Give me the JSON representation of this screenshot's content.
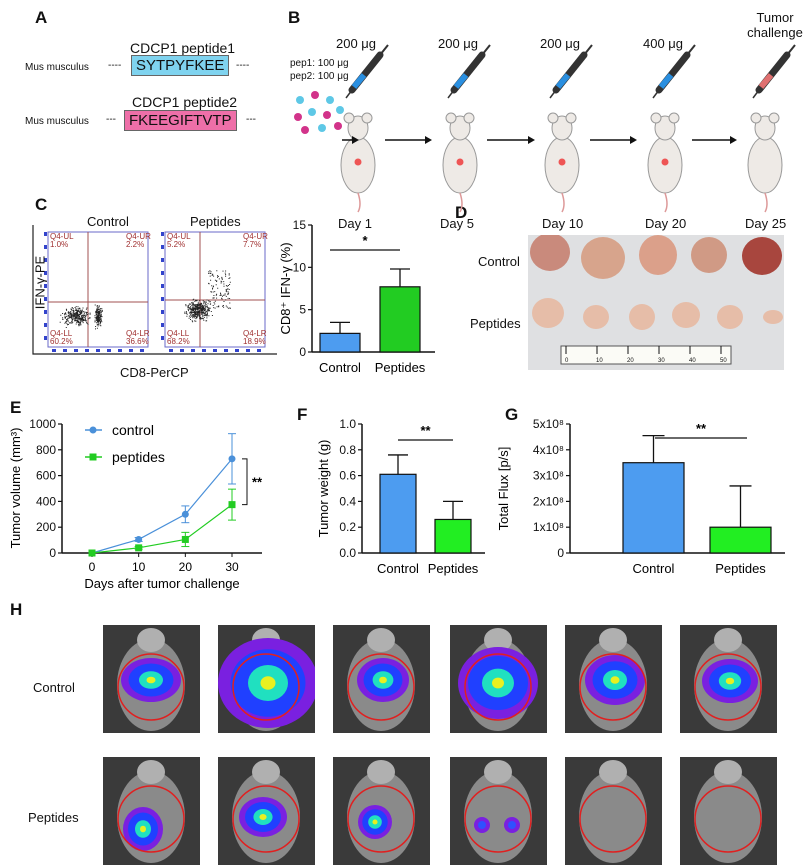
{
  "panels": {
    "A": "A",
    "B": "B",
    "C": "C",
    "D": "D",
    "E": "E",
    "F": "F",
    "G": "G",
    "H": "H"
  },
  "panelA": {
    "species": "Mus musculus",
    "dashes": "----",
    "pep1_name": "CDCP1 peptide1",
    "pep1_seq": "SYTPYFKEE",
    "pep2_name": "CDCP1 peptide2",
    "pep2_seq": "FKEEGIFTVTP",
    "dashes2": "---",
    "colors": {
      "pep1": "#7fd3ef",
      "pep2": "#ee6fa8"
    }
  },
  "panelB": {
    "pep1": "pep1: 100 μg",
    "pep2": "pep2: 100 μg",
    "doses": [
      "200 μg",
      "200 μg",
      "200 μg",
      "400 μg",
      "Tumor challenge"
    ],
    "days": [
      "Day 1",
      "Day 5",
      "Day 10",
      "Day 20",
      "Day 25"
    ]
  },
  "panelC": {
    "flow": {
      "ylabel": "IFN-γ-PE",
      "xlabel": "CD8-PerCP",
      "plots": [
        {
          "title": "Control",
          "UL": "Q4-UL",
          "UL_v": "1.0%",
          "UR": "Q4-UR",
          "UR_v": "2.2%",
          "LL": "Q4-LL",
          "LL_v": "60.2%",
          "LR": "Q4-LR",
          "LR_v": "36.6%"
        },
        {
          "title": "Peptides",
          "UL": "Q4-UL",
          "UL_v": "5.2%",
          "UR": "Q4-UR",
          "UR_v": "7.7%",
          "LL": "Q4-LL",
          "LL_v": "68.2%",
          "LR": "Q4-LR",
          "LR_v": "18.9%"
        }
      ]
    }
  },
  "panelD": {
    "rows": [
      "Control",
      "Peptides"
    ],
    "ruler_ticks": [
      "0",
      "10",
      "20",
      "30",
      "40",
      "50"
    ]
  },
  "panelH": {
    "rows": [
      "Control",
      "Peptides"
    ]
  },
  "chart_data": [
    {
      "id": "C",
      "type": "bar",
      "categories": [
        "Control",
        "Peptides"
      ],
      "values": [
        2.2,
        7.7
      ],
      "errors": [
        1.3,
        2.1
      ],
      "ylabel": "CD8⁺ IFN-γ (%)",
      "ylim": [
        0,
        15
      ],
      "yticks": [
        "0",
        "5",
        "10",
        "15"
      ],
      "significance": "*",
      "colors": [
        "#4d9cf0",
        "#22cc22"
      ]
    },
    {
      "id": "E",
      "type": "line",
      "x": [
        0,
        10,
        20,
        30
      ],
      "xticks": [
        "0",
        "10",
        "20",
        "30"
      ],
      "xlabel": "Days after tumor challenge",
      "ylabel": "Tumor volume (mm³)",
      "ylim": [
        0,
        1000
      ],
      "yticks": [
        "0",
        "200",
        "400",
        "600",
        "800",
        "1000"
      ],
      "series": [
        {
          "name": "control",
          "values": [
            0,
            105,
            300,
            730
          ],
          "errors": [
            0,
            15,
            65,
            195
          ],
          "color": "#4a90d9",
          "marker": "circle"
        },
        {
          "name": "peptides",
          "values": [
            0,
            40,
            105,
            375
          ],
          "errors": [
            0,
            10,
            55,
            120
          ],
          "color": "#22cc22",
          "marker": "square"
        }
      ],
      "significance": "**",
      "legend": "top-left"
    },
    {
      "id": "F",
      "type": "bar",
      "categories": [
        "Control",
        "Peptides"
      ],
      "values": [
        0.61,
        0.26
      ],
      "errors": [
        0.15,
        0.14
      ],
      "ylabel": "Tumor weight (g)",
      "ylim": [
        0,
        1.0
      ],
      "yticks": [
        "0.0",
        "0.2",
        "0.4",
        "0.6",
        "0.8",
        "1.0"
      ],
      "significance": "**",
      "colors": [
        "#4d9cf0",
        "#22ee22"
      ]
    },
    {
      "id": "G",
      "type": "bar",
      "categories": [
        "Control",
        "Peptides"
      ],
      "values": [
        350000000,
        100000000
      ],
      "errors": [
        105000000,
        160000000
      ],
      "ylabel": "Total Flux [p/s]",
      "ylim": [
        0,
        500000000
      ],
      "yticks": [
        "0",
        "1x10⁸",
        "2x10⁸",
        "3x10⁸",
        "4x10⁸",
        "5x10⁸"
      ],
      "significance": "**",
      "colors": [
        "#4d9cf0",
        "#22ee22"
      ]
    }
  ]
}
